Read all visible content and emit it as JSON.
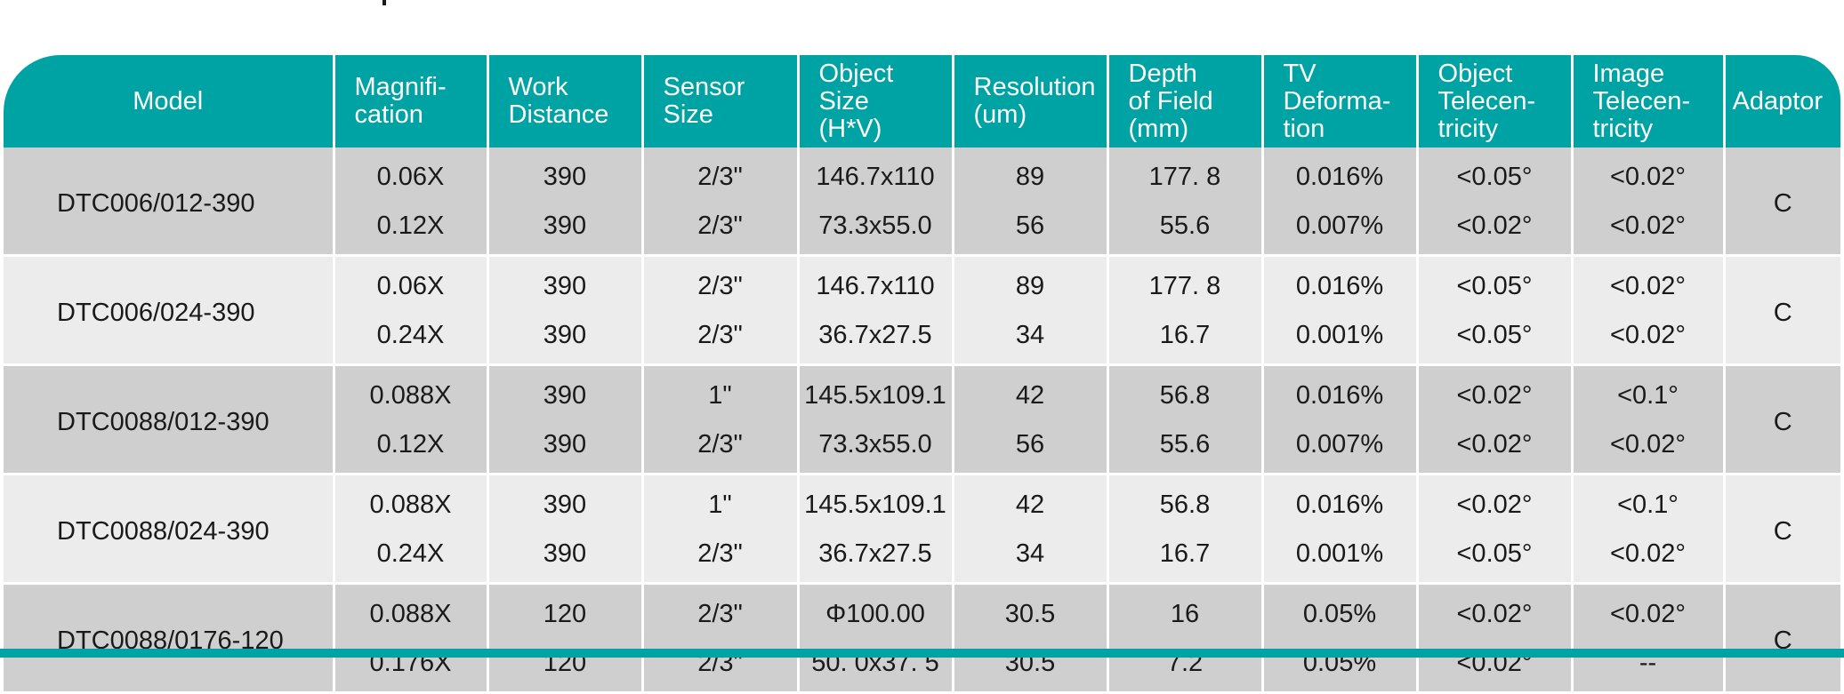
{
  "table": {
    "headers": {
      "model": "Model",
      "magnification": "Magnifi-\ncation",
      "work_distance": "Work\nDistance",
      "sensor_size": "Sensor\nSize",
      "object_size": "Object\nSize\n(H*V)",
      "resolution": "Resolution\n(um)",
      "depth_of_field": "Depth\nof Field\n(mm)",
      "tv_deformation": "TV\nDeforma-\ntion",
      "object_telecentricity": "Object\nTelecen-\ntricity",
      "image_telecentricity": "Image\nTelecen-\ntricity",
      "adaptor": "Adaptor"
    },
    "groups": [
      {
        "model": "DTC006/012-390",
        "adaptor": "C",
        "rows": [
          {
            "magnification": "0.06X",
            "work_distance": "390",
            "sensor_size": "2/3\"",
            "object_size": "146.7x110",
            "resolution": "89",
            "depth_of_field": "177. 8",
            "tv_deformation": "0.016%",
            "object_telecentricity": "<0.05°",
            "image_telecentricity": "<0.02°"
          },
          {
            "magnification": "0.12X",
            "work_distance": "390",
            "sensor_size": "2/3\"",
            "object_size": "73.3x55.0",
            "resolution": "56",
            "depth_of_field": "55.6",
            "tv_deformation": "0.007%",
            "object_telecentricity": "<0.02°",
            "image_telecentricity": "<0.02°"
          }
        ]
      },
      {
        "model": "DTC006/024-390",
        "adaptor": "C",
        "rows": [
          {
            "magnification": "0.06X",
            "work_distance": "390",
            "sensor_size": "2/3\"",
            "object_size": "146.7x110",
            "resolution": "89",
            "depth_of_field": "177. 8",
            "tv_deformation": "0.016%",
            "object_telecentricity": "<0.05°",
            "image_telecentricity": "<0.02°"
          },
          {
            "magnification": "0.24X",
            "work_distance": "390",
            "sensor_size": "2/3\"",
            "object_size": "36.7x27.5",
            "resolution": "34",
            "depth_of_field": "16.7",
            "tv_deformation": "0.001%",
            "object_telecentricity": "<0.05°",
            "image_telecentricity": "<0.02°"
          }
        ]
      },
      {
        "model": "DTC0088/012-390",
        "adaptor": "C",
        "rows": [
          {
            "magnification": "0.088X",
            "work_distance": "390",
            "sensor_size": "1\"",
            "object_size": "145.5x109.1",
            "resolution": "42",
            "depth_of_field": "56.8",
            "tv_deformation": "0.016%",
            "object_telecentricity": "<0.02°",
            "image_telecentricity": "<0.1°"
          },
          {
            "magnification": "0.12X",
            "work_distance": "390",
            "sensor_size": "2/3\"",
            "object_size": "73.3x55.0",
            "resolution": "56",
            "depth_of_field": "55.6",
            "tv_deformation": "0.007%",
            "object_telecentricity": "<0.02°",
            "image_telecentricity": "<0.02°"
          }
        ]
      },
      {
        "model": "DTC0088/024-390",
        "adaptor": "C",
        "rows": [
          {
            "magnification": "0.088X",
            "work_distance": "390",
            "sensor_size": "1\"",
            "object_size": "145.5x109.1",
            "resolution": "42",
            "depth_of_field": "56.8",
            "tv_deformation": "0.016%",
            "object_telecentricity": "<0.02°",
            "image_telecentricity": "<0.1°"
          },
          {
            "magnification": "0.24X",
            "work_distance": "390",
            "sensor_size": "2/3\"",
            "object_size": "36.7x27.5",
            "resolution": "34",
            "depth_of_field": "16.7",
            "tv_deformation": "0.001%",
            "object_telecentricity": "<0.05°",
            "image_telecentricity": "<0.02°"
          }
        ]
      },
      {
        "model": "DTC0088/0176-120",
        "adaptor": "C",
        "rows": [
          {
            "magnification": "0.088X",
            "work_distance": "120",
            "sensor_size": "2/3\"",
            "object_size": "Φ100.00",
            "resolution": "30.5",
            "depth_of_field": "16",
            "tv_deformation": "0.05%",
            "object_telecentricity": "<0.02°",
            "image_telecentricity": "<0.02°"
          },
          {
            "magnification": "0.176X",
            "work_distance": "120",
            "sensor_size": "2/3\"",
            "object_size": "50. 0x37. 5",
            "resolution": "30.5",
            "depth_of_field": "7.2",
            "tv_deformation": "0.05%",
            "object_telecentricity": "<0.02°",
            "image_telecentricity": "--"
          }
        ]
      }
    ]
  },
  "colors": {
    "header_bg": "#00a3a3",
    "row_dark": "#cfcfcf",
    "row_light": "#ececec",
    "text": "#1a1a1a"
  }
}
